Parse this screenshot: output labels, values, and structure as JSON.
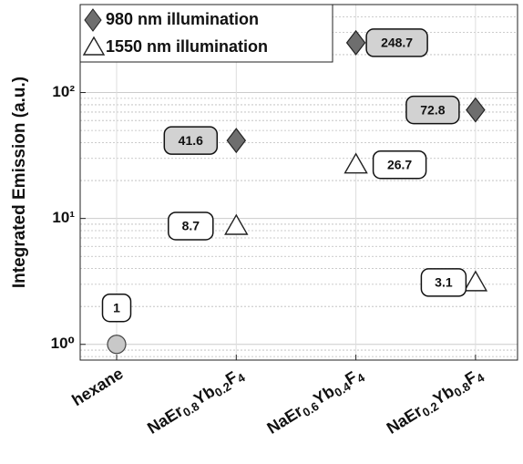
{
  "chart_data": {
    "type": "scatter",
    "y_label": "Integrated Emission (a.u.)",
    "categories": [
      "hexane",
      "NaEr0.8Yb0.2F4",
      "NaEr0.6Yb0.4F4",
      "NaEr0.2Yb0.8F4"
    ],
    "series": [
      {
        "name": "980 nm illumination",
        "marker": "diamond",
        "color": "#6e6e6e",
        "label_fill": "#d2d2d2",
        "values": [
          null,
          41.6,
          248.7,
          72.8
        ]
      },
      {
        "name": "1550 nm illumination",
        "marker": "triangle",
        "color": "#ffffff",
        "label_fill": "#ffffff",
        "values": [
          null,
          8.7,
          26.7,
          3.1
        ]
      },
      {
        "marker": "circle",
        "color": "#c8c8c8",
        "label_fill": "#ffffff",
        "values": [
          1,
          null,
          null,
          null
        ]
      }
    ],
    "y_scale": "log",
    "ylim": [
      0.75,
      500
    ],
    "yticks": [
      {
        "value": 1,
        "label": "10⁰"
      },
      {
        "value": 10,
        "label": "10¹"
      },
      {
        "value": 100,
        "label": "10²"
      }
    ],
    "grid": true,
    "legend": "upper left"
  }
}
